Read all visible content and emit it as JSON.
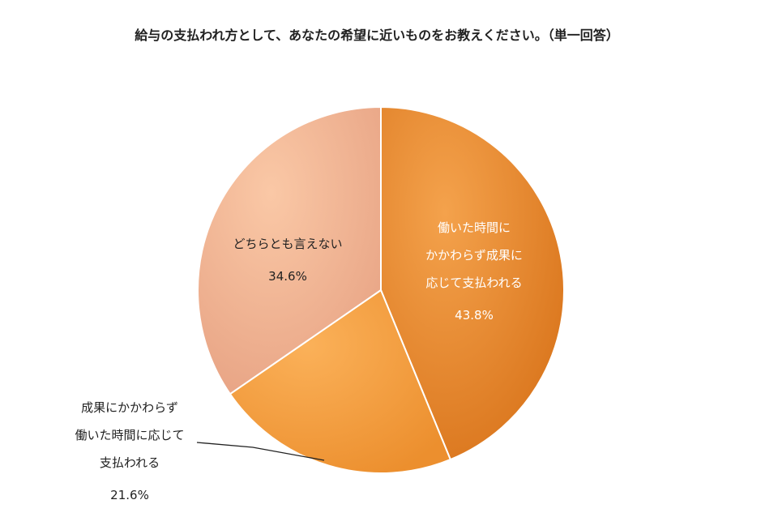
{
  "chart_data": {
    "type": "pie",
    "title": "給与の支払われ方として、あなたの希望に近いものをお教えください。（単一回答）",
    "slices": [
      {
        "label_lines": [
          "働いた時間に",
          "かかわらず成果に",
          "応じて支払われる"
        ],
        "value": 43.8,
        "value_label": "43.8%",
        "color": "#e87f24",
        "text_color": "#ffffff"
      },
      {
        "label_lines": [
          "成果にかかわらず",
          "働いた時間に応じて",
          "支払われる"
        ],
        "value": 21.6,
        "value_label": "21.6%",
        "color": "#f59b3a",
        "text_color": "#222222"
      },
      {
        "label_lines": [
          "どちらとも言えない"
        ],
        "value": 34.6,
        "value_label": "34.6%",
        "color": "#f5b48c",
        "text_color": "#222222"
      }
    ]
  }
}
